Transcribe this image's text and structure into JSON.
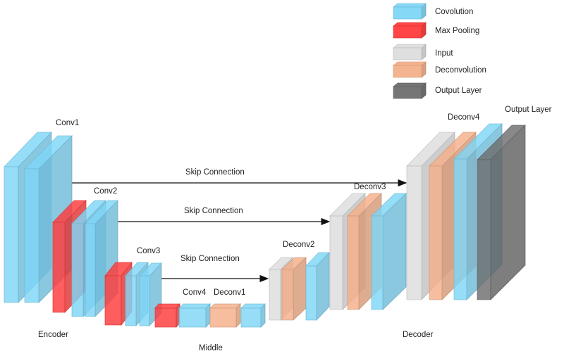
{
  "legend": [
    {
      "label": "Covolution",
      "color": "#7fd6f7"
    },
    {
      "label": "Max Pooling",
      "color": "#ff3b3b"
    },
    {
      "label": "Input",
      "color": "#dddddd"
    },
    {
      "label": "Deconvolution",
      "color": "#f4b08a"
    },
    {
      "label": "Output Layer",
      "color": "#6e6e6e"
    }
  ],
  "labels": {
    "conv1": "Conv1",
    "conv2": "Conv2",
    "conv3": "Conv3",
    "conv4": "Conv4",
    "deconv1": "Deconv1",
    "deconv2": "Deconv2",
    "deconv3": "Deconv3",
    "deconv4": "Deconv4",
    "output_layer": "Output Layer",
    "skip1": "Skip Connection",
    "skip2": "Skip Connection",
    "skip3": "Skip Connection",
    "encoder": "Encoder",
    "middle": "Middle",
    "decoder": "Decoder"
  }
}
